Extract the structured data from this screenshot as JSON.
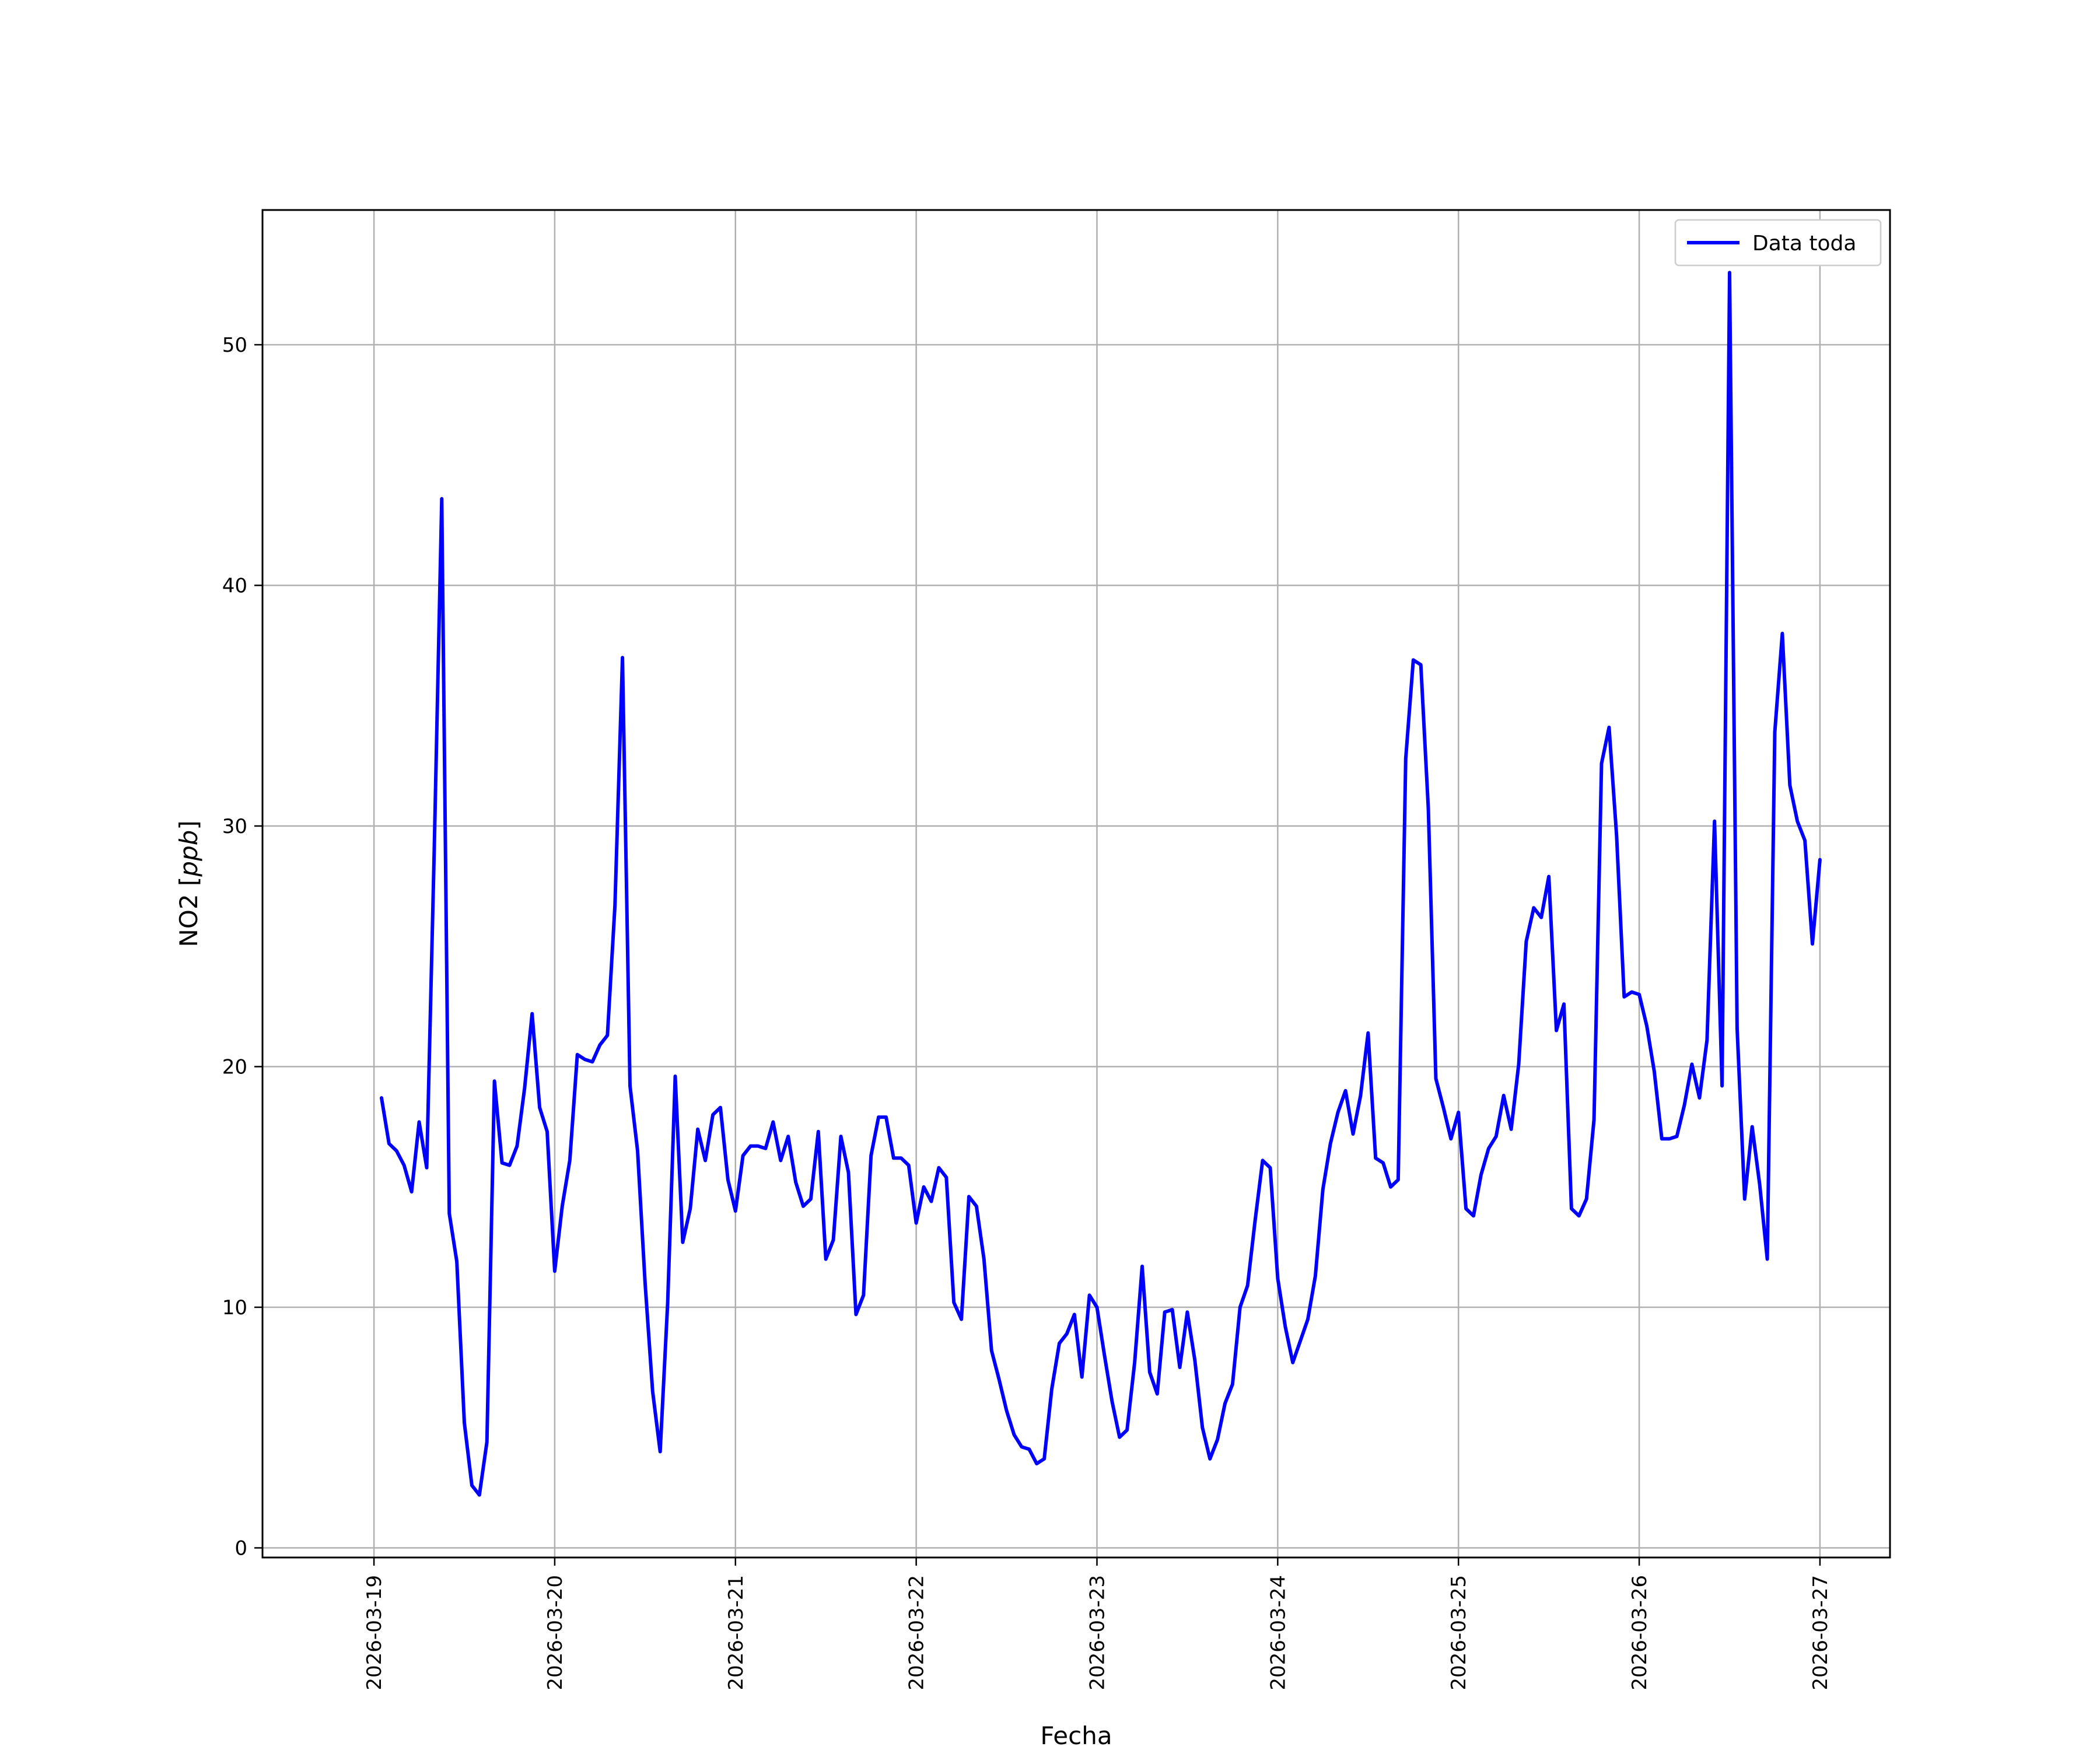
{
  "chart_data": {
    "type": "line",
    "xlabel": "Fecha",
    "ylabel": "NO2 [ppb]",
    "ylabel_main": "NO2 [",
    "ylabel_italic": "ppb",
    "ylabel_end": "]",
    "x_tick_labels": [
      "2026-03-19",
      "2026-03-20",
      "2026-03-21",
      "2026-03-22",
      "2026-03-23",
      "2026-03-24",
      "2026-03-25",
      "2026-03-26",
      "2026-03-27"
    ],
    "y_tick_labels": [
      "0",
      "10",
      "20",
      "30",
      "40",
      "50"
    ],
    "y_ticks": [
      0,
      10,
      20,
      30,
      40,
      50
    ],
    "xlim": [
      "2026-03-18T09:12",
      "2026-03-27T09:18"
    ],
    "ylim": [
      -0.4,
      55.6
    ],
    "grid": true,
    "legend_position": "top-right",
    "series": [
      {
        "name": "Data toda",
        "color": "#0000ff",
        "points": [
          [
            "2026-03-19T01:00",
            18.7
          ],
          [
            "2026-03-19T02:00",
            16.8
          ],
          [
            "2026-03-19T03:00",
            16.5
          ],
          [
            "2026-03-19T04:00",
            15.9
          ],
          [
            "2026-03-19T05:00",
            14.8
          ],
          [
            "2026-03-19T06:00",
            17.7
          ],
          [
            "2026-03-19T07:00",
            15.8
          ],
          [
            "2026-03-19T08:00",
            29.0
          ],
          [
            "2026-03-19T09:00",
            43.6
          ],
          [
            "2026-03-19T10:00",
            13.9
          ],
          [
            "2026-03-19T11:00",
            11.9
          ],
          [
            "2026-03-19T12:00",
            5.2
          ],
          [
            "2026-03-19T13:00",
            2.6
          ],
          [
            "2026-03-19T14:00",
            2.2
          ],
          [
            "2026-03-19T15:00",
            4.4
          ],
          [
            "2026-03-19T16:00",
            19.4
          ],
          [
            "2026-03-19T17:00",
            16.0
          ],
          [
            "2026-03-19T18:00",
            15.9
          ],
          [
            "2026-03-19T19:00",
            16.7
          ],
          [
            "2026-03-19T20:00",
            19.1
          ],
          [
            "2026-03-19T21:00",
            22.2
          ],
          [
            "2026-03-19T22:00",
            18.3
          ],
          [
            "2026-03-19T23:00",
            17.3
          ],
          [
            "2026-03-20T00:00",
            11.5
          ],
          [
            "2026-03-20T01:00",
            14.2
          ],
          [
            "2026-03-20T02:00",
            16.1
          ],
          [
            "2026-03-20T03:00",
            20.5
          ],
          [
            "2026-03-20T04:00",
            20.3
          ],
          [
            "2026-03-20T05:00",
            20.2
          ],
          [
            "2026-03-20T06:00",
            20.9
          ],
          [
            "2026-03-20T07:00",
            21.3
          ],
          [
            "2026-03-20T08:00",
            26.7
          ],
          [
            "2026-03-20T09:00",
            37.0
          ],
          [
            "2026-03-20T10:00",
            19.2
          ],
          [
            "2026-03-20T11:00",
            16.5
          ],
          [
            "2026-03-20T12:00",
            11.0
          ],
          [
            "2026-03-20T13:00",
            6.5
          ],
          [
            "2026-03-20T14:00",
            4.0
          ],
          [
            "2026-03-20T15:00",
            10.2
          ],
          [
            "2026-03-20T16:00",
            19.6
          ],
          [
            "2026-03-20T17:00",
            12.7
          ],
          [
            "2026-03-20T18:00",
            14.1
          ],
          [
            "2026-03-20T19:00",
            17.4
          ],
          [
            "2026-03-20T20:00",
            16.1
          ],
          [
            "2026-03-20T21:00",
            18.0
          ],
          [
            "2026-03-20T22:00",
            18.3
          ],
          [
            "2026-03-20T23:00",
            15.3
          ],
          [
            "2026-03-21T00:00",
            14.0
          ],
          [
            "2026-03-21T01:00",
            16.3
          ],
          [
            "2026-03-21T02:00",
            16.7
          ],
          [
            "2026-03-21T03:00",
            16.7
          ],
          [
            "2026-03-21T04:00",
            16.6
          ],
          [
            "2026-03-21T05:00",
            17.7
          ],
          [
            "2026-03-21T06:00",
            16.1
          ],
          [
            "2026-03-21T07:00",
            17.1
          ],
          [
            "2026-03-21T08:00",
            15.2
          ],
          [
            "2026-03-21T09:00",
            14.2
          ],
          [
            "2026-03-21T10:00",
            14.5
          ],
          [
            "2026-03-21T11:00",
            17.3
          ],
          [
            "2026-03-21T12:00",
            12.0
          ],
          [
            "2026-03-21T13:00",
            12.8
          ],
          [
            "2026-03-21T14:00",
            17.1
          ],
          [
            "2026-03-21T15:00",
            15.6
          ],
          [
            "2026-03-21T16:00",
            9.7
          ],
          [
            "2026-03-21T17:00",
            10.5
          ],
          [
            "2026-03-21T18:00",
            16.3
          ],
          [
            "2026-03-21T19:00",
            17.9
          ],
          [
            "2026-03-21T20:00",
            17.9
          ],
          [
            "2026-03-21T21:00",
            16.2
          ],
          [
            "2026-03-21T22:00",
            16.2
          ],
          [
            "2026-03-21T23:00",
            15.9
          ],
          [
            "2026-03-22T00:00",
            13.5
          ],
          [
            "2026-03-22T01:00",
            15.0
          ],
          [
            "2026-03-22T02:00",
            14.4
          ],
          [
            "2026-03-22T03:00",
            15.8
          ],
          [
            "2026-03-22T04:00",
            15.4
          ],
          [
            "2026-03-22T05:00",
            10.2
          ],
          [
            "2026-03-22T06:00",
            9.5
          ],
          [
            "2026-03-22T07:00",
            14.6
          ],
          [
            "2026-03-22T08:00",
            14.2
          ],
          [
            "2026-03-22T09:00",
            12.0
          ],
          [
            "2026-03-22T10:00",
            8.2
          ],
          [
            "2026-03-22T11:00",
            7.0
          ],
          [
            "2026-03-22T12:00",
            5.7
          ],
          [
            "2026-03-22T13:00",
            4.7
          ],
          [
            "2026-03-22T14:00",
            4.2
          ],
          [
            "2026-03-22T15:00",
            4.1
          ],
          [
            "2026-03-22T16:00",
            3.5
          ],
          [
            "2026-03-22T17:00",
            3.7
          ],
          [
            "2026-03-22T18:00",
            6.6
          ],
          [
            "2026-03-22T19:00",
            8.5
          ],
          [
            "2026-03-22T20:00",
            8.9
          ],
          [
            "2026-03-22T21:00",
            9.7
          ],
          [
            "2026-03-22T22:00",
            7.1
          ],
          [
            "2026-03-22T23:00",
            10.5
          ],
          [
            "2026-03-23T00:00",
            10.0
          ],
          [
            "2026-03-23T01:00",
            8.0
          ],
          [
            "2026-03-23T02:00",
            6.1
          ],
          [
            "2026-03-23T03:00",
            4.6
          ],
          [
            "2026-03-23T04:00",
            4.9
          ],
          [
            "2026-03-23T05:00",
            7.7
          ],
          [
            "2026-03-23T06:00",
            11.7
          ],
          [
            "2026-03-23T07:00",
            7.3
          ],
          [
            "2026-03-23T08:00",
            6.4
          ],
          [
            "2026-03-23T09:00",
            9.8
          ],
          [
            "2026-03-23T10:00",
            9.9
          ],
          [
            "2026-03-23T11:00",
            7.5
          ],
          [
            "2026-03-23T12:00",
            9.8
          ],
          [
            "2026-03-23T13:00",
            7.8
          ],
          [
            "2026-03-23T14:00",
            5.0
          ],
          [
            "2026-03-23T15:00",
            3.7
          ],
          [
            "2026-03-23T16:00",
            4.5
          ],
          [
            "2026-03-23T17:00",
            6.0
          ],
          [
            "2026-03-23T18:00",
            6.8
          ],
          [
            "2026-03-23T19:00",
            10.0
          ],
          [
            "2026-03-23T20:00",
            10.9
          ],
          [
            "2026-03-23T21:00",
            13.6
          ],
          [
            "2026-03-23T22:00",
            16.1
          ],
          [
            "2026-03-23T23:00",
            15.8
          ],
          [
            "2026-03-24T00:00",
            11.2
          ],
          [
            "2026-03-24T01:00",
            9.2
          ],
          [
            "2026-03-24T02:00",
            7.7
          ],
          [
            "2026-03-24T03:00",
            8.6
          ],
          [
            "2026-03-24T04:00",
            9.5
          ],
          [
            "2026-03-24T05:00",
            11.3
          ],
          [
            "2026-03-24T06:00",
            14.9
          ],
          [
            "2026-03-24T07:00",
            16.8
          ],
          [
            "2026-03-24T08:00",
            18.1
          ],
          [
            "2026-03-24T09:00",
            19.0
          ],
          [
            "2026-03-24T10:00",
            17.2
          ],
          [
            "2026-03-24T11:00",
            18.8
          ],
          [
            "2026-03-24T12:00",
            21.4
          ],
          [
            "2026-03-24T13:00",
            16.2
          ],
          [
            "2026-03-24T14:00",
            16.0
          ],
          [
            "2026-03-24T15:00",
            15.0
          ],
          [
            "2026-03-24T16:00",
            15.3
          ],
          [
            "2026-03-24T17:00",
            32.8
          ],
          [
            "2026-03-24T18:00",
            36.9
          ],
          [
            "2026-03-24T19:00",
            36.7
          ],
          [
            "2026-03-24T20:00",
            30.7
          ],
          [
            "2026-03-24T21:00",
            19.5
          ],
          [
            "2026-03-24T22:00",
            18.3
          ],
          [
            "2026-03-24T23:00",
            17.0
          ],
          [
            "2026-03-25T00:00",
            18.1
          ],
          [
            "2026-03-25T01:00",
            14.1
          ],
          [
            "2026-03-25T02:00",
            13.8
          ],
          [
            "2026-03-25T03:00",
            15.5
          ],
          [
            "2026-03-25T04:00",
            16.6
          ],
          [
            "2026-03-25T05:00",
            17.1
          ],
          [
            "2026-03-25T06:00",
            18.8
          ],
          [
            "2026-03-25T07:00",
            17.4
          ],
          [
            "2026-03-25T08:00",
            20.1
          ],
          [
            "2026-03-25T09:00",
            25.2
          ],
          [
            "2026-03-25T10:00",
            26.6
          ],
          [
            "2026-03-25T11:00",
            26.2
          ],
          [
            "2026-03-25T12:00",
            27.9
          ],
          [
            "2026-03-25T13:00",
            21.5
          ],
          [
            "2026-03-25T14:00",
            22.6
          ],
          [
            "2026-03-25T15:00",
            14.1
          ],
          [
            "2026-03-25T16:00",
            13.8
          ],
          [
            "2026-03-25T17:00",
            14.5
          ],
          [
            "2026-03-25T18:00",
            17.8
          ],
          [
            "2026-03-25T19:00",
            32.6
          ],
          [
            "2026-03-25T20:00",
            34.1
          ],
          [
            "2026-03-25T21:00",
            29.6
          ],
          [
            "2026-03-25T22:00",
            22.9
          ],
          [
            "2026-03-25T23:00",
            23.1
          ],
          [
            "2026-03-26T00:00",
            23.0
          ],
          [
            "2026-03-26T01:00",
            21.7
          ],
          [
            "2026-03-26T02:00",
            19.8
          ],
          [
            "2026-03-26T03:00",
            17.0
          ],
          [
            "2026-03-26T04:00",
            17.0
          ],
          [
            "2026-03-26T05:00",
            17.1
          ],
          [
            "2026-03-26T06:00",
            18.4
          ],
          [
            "2026-03-26T07:00",
            20.1
          ],
          [
            "2026-03-26T08:00",
            18.7
          ],
          [
            "2026-03-26T09:00",
            21.1
          ],
          [
            "2026-03-26T10:00",
            30.2
          ],
          [
            "2026-03-26T11:00",
            19.2
          ],
          [
            "2026-03-26T12:00",
            53.0
          ],
          [
            "2026-03-26T13:00",
            21.6
          ],
          [
            "2026-03-26T14:00",
            14.5
          ],
          [
            "2026-03-26T15:00",
            17.5
          ],
          [
            "2026-03-26T16:00",
            15.1
          ],
          [
            "2026-03-26T17:00",
            12.0
          ],
          [
            "2026-03-26T18:00",
            33.9
          ],
          [
            "2026-03-26T19:00",
            38.0
          ],
          [
            "2026-03-26T20:00",
            31.7
          ],
          [
            "2026-03-26T21:00",
            30.2
          ],
          [
            "2026-03-26T22:00",
            29.4
          ],
          [
            "2026-03-26T23:00",
            25.1
          ],
          [
            "2026-03-27T00:00",
            28.6
          ]
        ]
      }
    ]
  }
}
